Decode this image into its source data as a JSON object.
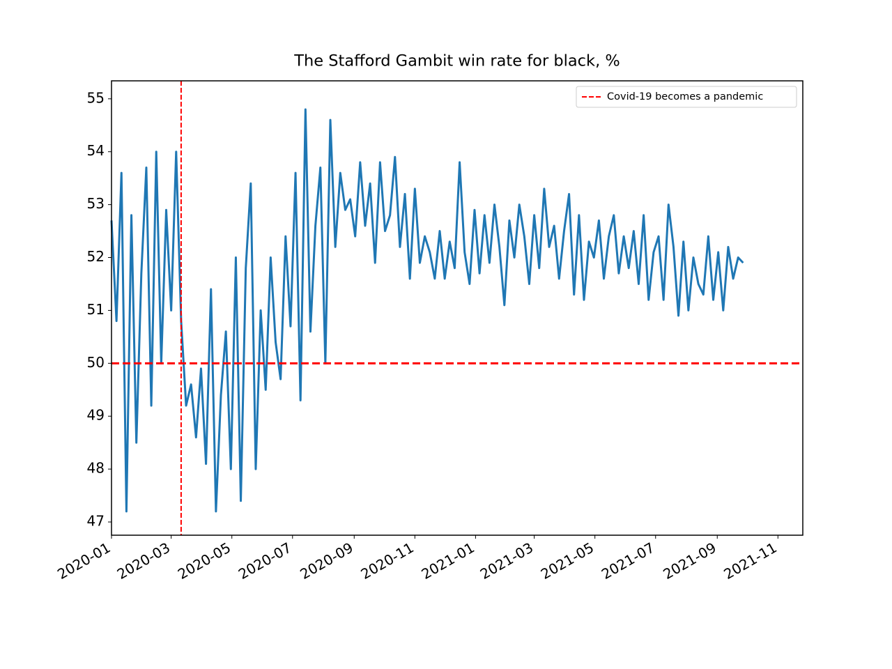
{
  "chart_data": {
    "type": "line",
    "title": "The Stafford Gambit win rate for black, %",
    "x": [
      "2020-01-01",
      "2020-01-06",
      "2020-01-11",
      "2020-01-16",
      "2020-01-21",
      "2020-01-26",
      "2020-01-31",
      "2020-02-05",
      "2020-02-10",
      "2020-02-15",
      "2020-02-20",
      "2020-02-25",
      "2020-03-01",
      "2020-03-06",
      "2020-03-11",
      "2020-03-16",
      "2020-03-21",
      "2020-03-26",
      "2020-03-31",
      "2020-04-05",
      "2020-04-10",
      "2020-04-15",
      "2020-04-20",
      "2020-04-25",
      "2020-04-30",
      "2020-05-05",
      "2020-05-10",
      "2020-05-15",
      "2020-05-20",
      "2020-05-25",
      "2020-05-30",
      "2020-06-04",
      "2020-06-09",
      "2020-06-14",
      "2020-06-19",
      "2020-06-24",
      "2020-06-29",
      "2020-07-04",
      "2020-07-09",
      "2020-07-14",
      "2020-07-19",
      "2020-07-24",
      "2020-07-29",
      "2020-08-03",
      "2020-08-08",
      "2020-08-13",
      "2020-08-18",
      "2020-08-23",
      "2020-08-28",
      "2020-09-02",
      "2020-09-07",
      "2020-09-12",
      "2020-09-17",
      "2020-09-22",
      "2020-09-27",
      "2020-10-02",
      "2020-10-07",
      "2020-10-12",
      "2020-10-17",
      "2020-10-22",
      "2020-10-27",
      "2020-11-01",
      "2020-11-06",
      "2020-11-11",
      "2020-11-16",
      "2020-11-21",
      "2020-11-26",
      "2020-12-01",
      "2020-12-06",
      "2020-12-11",
      "2020-12-16",
      "2020-12-21",
      "2020-12-26",
      "2020-12-31",
      "2021-01-05",
      "2021-01-10",
      "2021-01-15",
      "2021-01-20",
      "2021-01-25",
      "2021-01-30",
      "2021-02-04",
      "2021-02-09",
      "2021-02-14",
      "2021-02-19",
      "2021-02-24",
      "2021-03-01",
      "2021-03-06",
      "2021-03-11",
      "2021-03-16",
      "2021-03-21",
      "2021-03-26",
      "2021-03-31",
      "2021-04-05",
      "2021-04-10",
      "2021-04-15",
      "2021-04-20",
      "2021-04-25",
      "2021-04-30",
      "2021-05-05",
      "2021-05-10",
      "2021-05-15",
      "2021-05-20",
      "2021-05-25",
      "2021-05-30",
      "2021-06-04",
      "2021-06-09",
      "2021-06-14",
      "2021-06-19",
      "2021-06-24",
      "2021-06-29",
      "2021-07-04",
      "2021-07-09",
      "2021-07-14",
      "2021-07-19",
      "2021-07-24",
      "2021-07-29",
      "2021-08-03",
      "2021-08-08",
      "2021-08-13",
      "2021-08-18",
      "2021-08-23",
      "2021-08-28",
      "2021-09-02",
      "2021-09-07",
      "2021-09-12",
      "2021-09-17",
      "2021-09-22",
      "2021-09-27"
    ],
    "values": [
      52.7,
      50.8,
      53.6,
      47.2,
      52.8,
      48.5,
      51.7,
      53.7,
      49.2,
      54.0,
      50.0,
      52.9,
      51.0,
      54.0,
      50.8,
      49.2,
      49.6,
      48.6,
      49.9,
      48.1,
      51.4,
      47.2,
      49.4,
      50.6,
      48.0,
      52.0,
      47.4,
      51.8,
      53.4,
      48.0,
      51.0,
      49.5,
      52.0,
      50.4,
      49.7,
      52.4,
      50.7,
      53.6,
      49.3,
      54.8,
      50.6,
      52.6,
      53.7,
      50.0,
      54.6,
      52.2,
      53.6,
      52.9,
      53.1,
      52.4,
      53.8,
      52.6,
      53.4,
      51.9,
      53.8,
      52.5,
      52.8,
      53.9,
      52.2,
      53.2,
      51.6,
      53.3,
      51.9,
      52.4,
      52.1,
      51.6,
      52.5,
      51.6,
      52.3,
      51.8,
      53.8,
      52.1,
      51.5,
      52.9,
      51.7,
      52.8,
      51.9,
      53.0,
      52.2,
      51.1,
      52.7,
      52.0,
      53.0,
      52.4,
      51.5,
      52.8,
      51.8,
      53.3,
      52.2,
      52.6,
      51.6,
      52.5,
      53.2,
      51.3,
      52.8,
      51.2,
      52.3,
      52.0,
      52.7,
      51.6,
      52.4,
      52.8,
      51.7,
      52.4,
      51.8,
      52.5,
      51.5,
      52.8,
      51.2,
      52.1,
      52.4,
      51.2,
      53.0,
      52.2,
      50.9,
      52.3,
      51.0,
      52.0,
      51.5,
      51.3,
      52.4,
      51.2,
      52.1,
      51.0,
      52.2,
      51.6,
      52.0,
      51.9
    ],
    "color": "#1f77b4",
    "xlim": [
      "2020-01-01",
      "2021-11-26"
    ],
    "xticks": [
      "2020-01",
      "2020-03",
      "2020-05",
      "2020-07",
      "2020-09",
      "2020-11",
      "2021-01",
      "2021-03",
      "2021-05",
      "2021-07",
      "2021-09",
      "2021-11"
    ],
    "ylim": [
      46.75,
      55.34
    ],
    "yticks": [
      47,
      48,
      49,
      50,
      51,
      52,
      53,
      54,
      55
    ],
    "vline": {
      "x": "2020-03-11",
      "label": "Covid-19 becomes a pandemic",
      "color": "#ff0000"
    },
    "hline": {
      "y": 50,
      "color": "#ff0000"
    },
    "legend": "upper right"
  }
}
